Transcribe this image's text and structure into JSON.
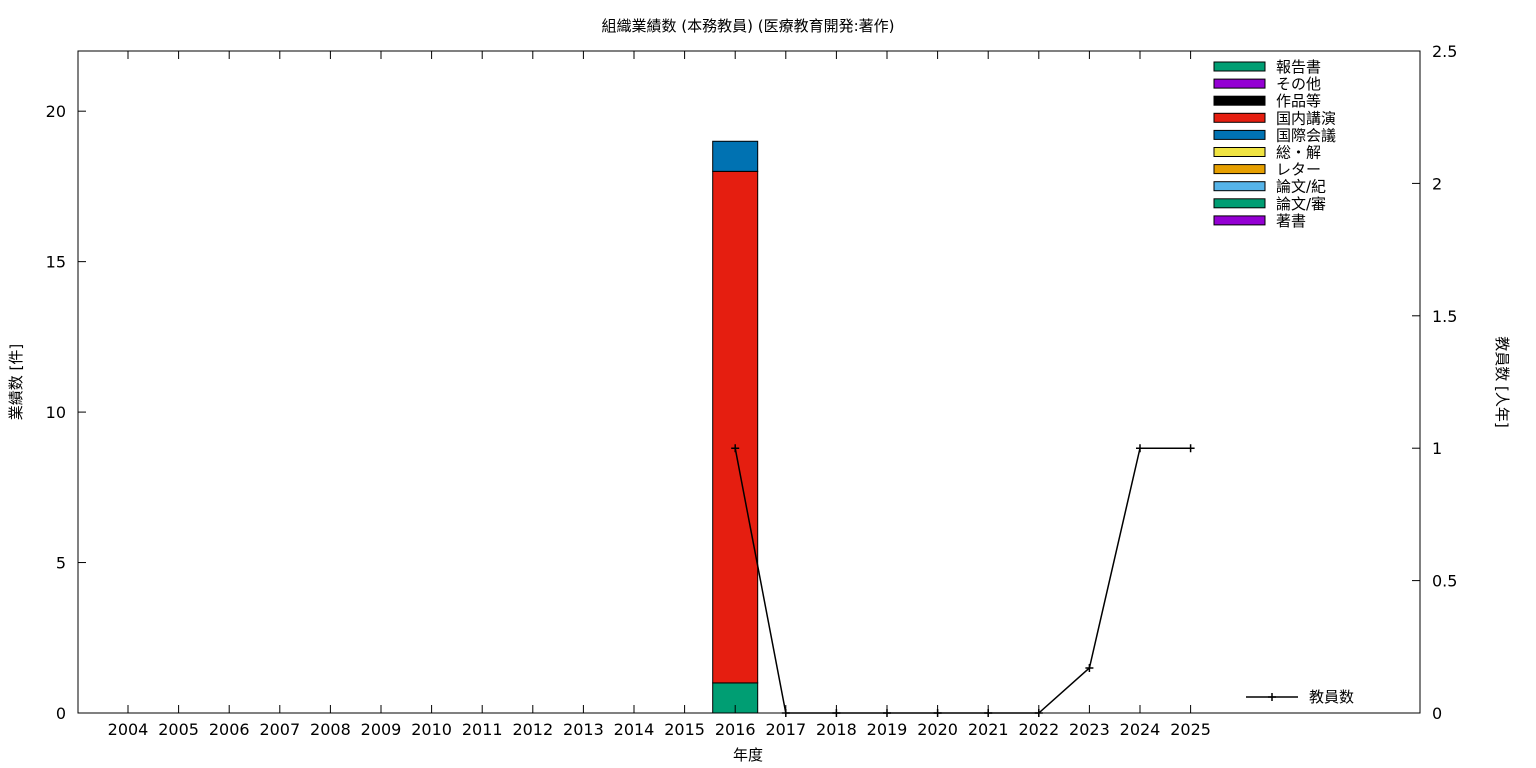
{
  "chart_data": {
    "type": "bar",
    "title": "組織業績数 (本務教員) (医療教育開発:著作)",
    "xlabel": "年度",
    "ylabel": "業績数 [件]",
    "y2label": "教員数 [人年]",
    "categories": [
      "2004",
      "2005",
      "2006",
      "2007",
      "2008",
      "2009",
      "2010",
      "2011",
      "2012",
      "2013",
      "2014",
      "2015",
      "2016",
      "2017",
      "2018",
      "2019",
      "2020",
      "2021",
      "2022",
      "2023",
      "2024",
      "2025"
    ],
    "ylim": [
      0,
      22
    ],
    "yticks": [
      0,
      5,
      10,
      15,
      20
    ],
    "y2lim": [
      0,
      2.5
    ],
    "y2ticks": [
      0,
      0.5,
      1,
      1.5,
      2,
      2.5
    ],
    "legend_position": "top-right",
    "series": [
      {
        "name": "報告書",
        "color": "#009e73",
        "values": [
          0,
          0,
          0,
          0,
          0,
          0,
          0,
          0,
          0,
          0,
          0,
          0,
          1,
          0,
          0,
          0,
          0,
          0,
          0,
          0,
          0,
          0
        ]
      },
      {
        "name": "その他",
        "color": "#9400d3",
        "values": [
          0,
          0,
          0,
          0,
          0,
          0,
          0,
          0,
          0,
          0,
          0,
          0,
          0,
          0,
          0,
          0,
          0,
          0,
          0,
          0,
          0,
          0
        ]
      },
      {
        "name": "作品等",
        "color": "#000000",
        "values": [
          0,
          0,
          0,
          0,
          0,
          0,
          0,
          0,
          0,
          0,
          0,
          0,
          0,
          0,
          0,
          0,
          0,
          0,
          0,
          0,
          0,
          0
        ]
      },
      {
        "name": "国内講演",
        "color": "#e51e10",
        "values": [
          0,
          0,
          0,
          0,
          0,
          0,
          0,
          0,
          0,
          0,
          0,
          0,
          17,
          0,
          0,
          0,
          0,
          0,
          0,
          0,
          0,
          0
        ]
      },
      {
        "name": "国際会議",
        "color": "#0072b2",
        "values": [
          0,
          0,
          0,
          0,
          0,
          0,
          0,
          0,
          0,
          0,
          0,
          0,
          1,
          0,
          0,
          0,
          0,
          0,
          0,
          0,
          0,
          0
        ]
      },
      {
        "name": "総・解",
        "color": "#f0e442",
        "values": [
          0,
          0,
          0,
          0,
          0,
          0,
          0,
          0,
          0,
          0,
          0,
          0,
          0,
          0,
          0,
          0,
          0,
          0,
          0,
          0,
          0,
          0
        ]
      },
      {
        "name": "レター",
        "color": "#e69f00",
        "values": [
          0,
          0,
          0,
          0,
          0,
          0,
          0,
          0,
          0,
          0,
          0,
          0,
          0,
          0,
          0,
          0,
          0,
          0,
          0,
          0,
          0,
          0
        ]
      },
      {
        "name": "論文/紀",
        "color": "#56b4e9",
        "values": [
          0,
          0,
          0,
          0,
          0,
          0,
          0,
          0,
          0,
          0,
          0,
          0,
          0,
          0,
          0,
          0,
          0,
          0,
          0,
          0,
          0,
          0
        ]
      },
      {
        "name": "論文/審",
        "color": "#009e73",
        "values": [
          0,
          0,
          0,
          0,
          0,
          0,
          0,
          0,
          0,
          0,
          0,
          0,
          0,
          0,
          0,
          0,
          0,
          0,
          0,
          0,
          0,
          0
        ]
      },
      {
        "name": "著書",
        "color": "#9400d3",
        "values": [
          0,
          0,
          0,
          0,
          0,
          0,
          0,
          0,
          0,
          0,
          0,
          0,
          0,
          0,
          0,
          0,
          0,
          0,
          0,
          0,
          0,
          0
        ]
      }
    ],
    "stack_order": [
      "報告書",
      "国際会議",
      "国内講演"
    ],
    "line_series": {
      "name": "教員数",
      "color": "#000000",
      "axis": "y2",
      "x": [
        "2016",
        "2017",
        "2018",
        "2019",
        "2020",
        "2021",
        "2022",
        "2023",
        "2024",
        "2025"
      ],
      "values": [
        1,
        0,
        0,
        0,
        0,
        0,
        0,
        0.17,
        1,
        1
      ]
    }
  }
}
